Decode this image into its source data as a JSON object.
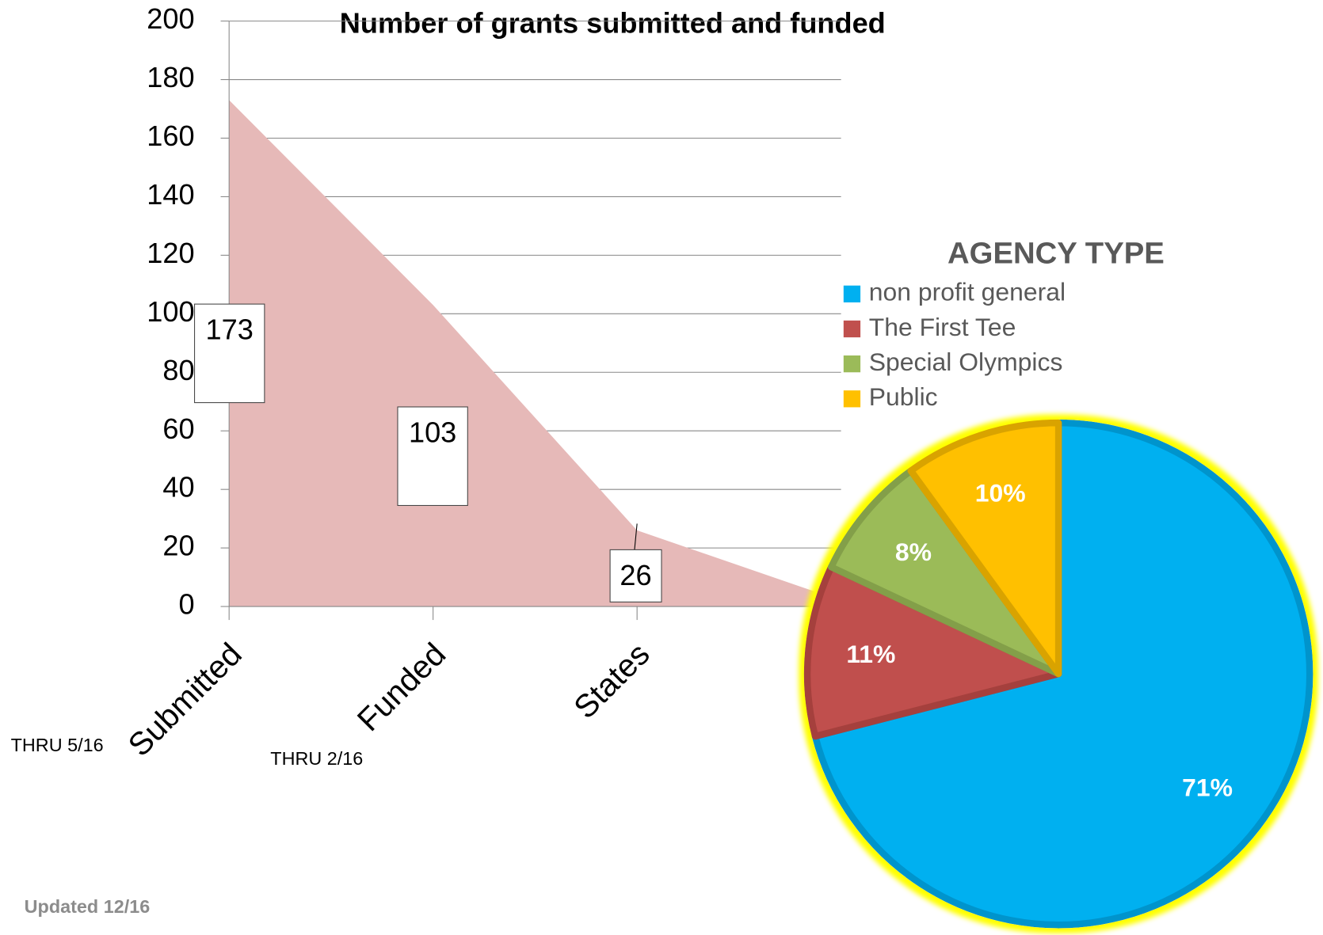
{
  "chart_data": [
    {
      "type": "area",
      "title": "Number of grants submitted and funded",
      "categories": [
        "Submitted",
        "Funded",
        "States",
        null
      ],
      "values": [
        173,
        103,
        26,
        2
      ],
      "color": "#e6b9b8",
      "ylim": [
        0,
        200
      ],
      "yticks": [
        0,
        20,
        40,
        60,
        80,
        100,
        120,
        140,
        160,
        180,
        200
      ],
      "grid": true,
      "annotations": [
        "THRU 5/16",
        "THRU 2/16",
        "Updated  12/16"
      ]
    },
    {
      "type": "pie",
      "title": "AGENCY TYPE",
      "categories": [
        "non profit  general",
        "The First Tee",
        "Special Olympics",
        "Public"
      ],
      "values": [
        71,
        11,
        8,
        10
      ],
      "value_labels": [
        "71%",
        "11%",
        "8%",
        "10%"
      ],
      "colors": [
        "#00b0f0",
        "#c0504d",
        "#9bbb59",
        "#ffc000"
      ],
      "legend": "top"
    }
  ]
}
